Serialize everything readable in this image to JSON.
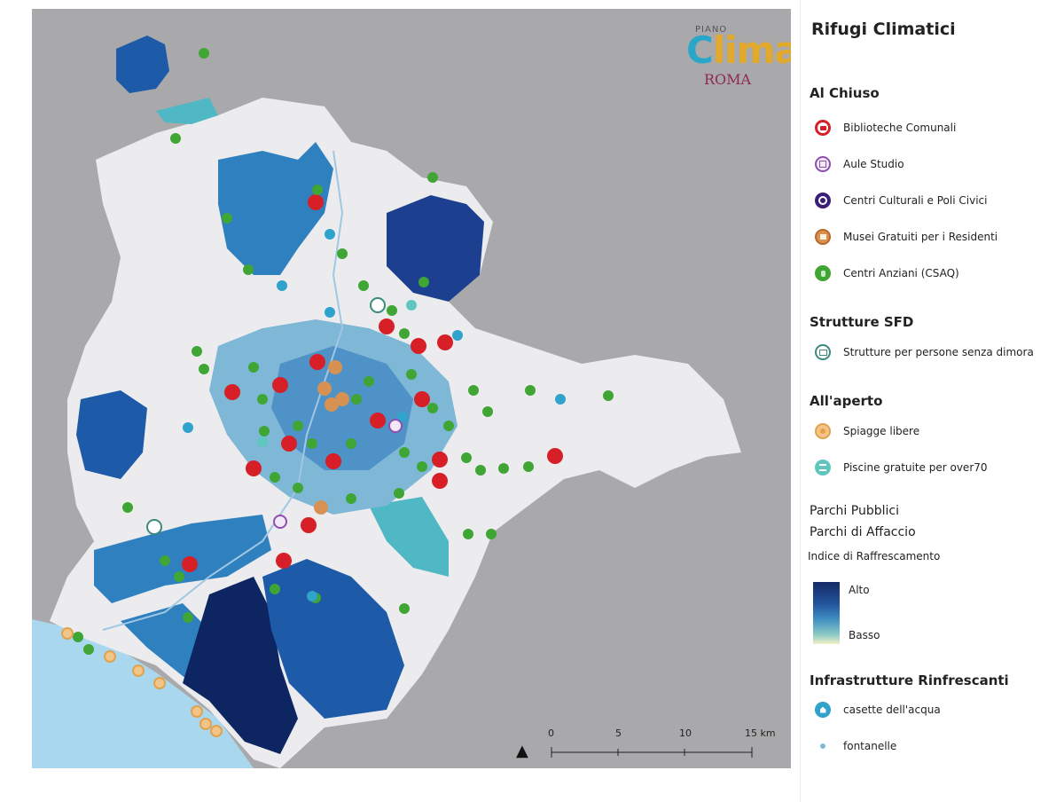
{
  "map": {
    "logo": {
      "pre": "PIANO",
      "main_first": "C",
      "main_rest": "lima",
      "sub": "ROMA"
    },
    "north": "N",
    "scale": {
      "ticks": [
        "0",
        "5",
        "10",
        "15 km"
      ]
    },
    "colors": {
      "background": "#a9a9ab",
      "sea": "#a9d8ee",
      "land": "#ececef",
      "light_blue": "#2f80bf",
      "dark_blue": "#1d3f8f",
      "navy": "#0d2560",
      "teal": "#4fb8c4"
    }
  },
  "legend": {
    "title": "Rifugi Climatici",
    "indoor": {
      "heading": "Al Chiuso",
      "items": [
        {
          "icon": "library-icon",
          "label": "Biblioteche Comunali",
          "color": "#d61f26"
        },
        {
          "icon": "study-room-icon",
          "label": "Aule Studio",
          "color": "#8d4fb0"
        },
        {
          "icon": "cultural-center-icon",
          "label": "Centri Culturali e Poli Civici",
          "color": "#3b1c78"
        },
        {
          "icon": "museum-icon",
          "label": "Musei Gratuiti per i Residenti",
          "color": "#d79152"
        },
        {
          "icon": "senior-center-icon",
          "label": "Centri Anziani (CSAQ)",
          "color": "#3fa535"
        }
      ]
    },
    "sfd": {
      "heading": "Strutture SFD",
      "items": [
        {
          "icon": "shelter-icon",
          "label": "Strutture per persone senza dimora",
          "color": "#3c8a7e"
        }
      ]
    },
    "outdoor": {
      "heading": "All'aperto",
      "items": [
        {
          "icon": "beach-icon",
          "label": "Spiagge libere",
          "color": "#e8a13d"
        },
        {
          "icon": "pool-icon",
          "label": "Piscine gratuite per over70",
          "color": "#5fc7bf"
        }
      ]
    },
    "parks": {
      "line1": "Parchi Pubblici",
      "line2": "Parchi di Affaccio",
      "index_label": "Indice di  Raffrescamento",
      "high": "Alto",
      "low": "Basso"
    },
    "infrastructure": {
      "heading": "Infrastrutture Rinfrescanti",
      "items": [
        {
          "icon": "water-house-icon",
          "label": "casette dell'acqua",
          "color": "#2fa3cc"
        },
        {
          "icon": "fountain-icon",
          "label": "fontanelle",
          "color": "#7fb7d6"
        }
      ]
    }
  }
}
